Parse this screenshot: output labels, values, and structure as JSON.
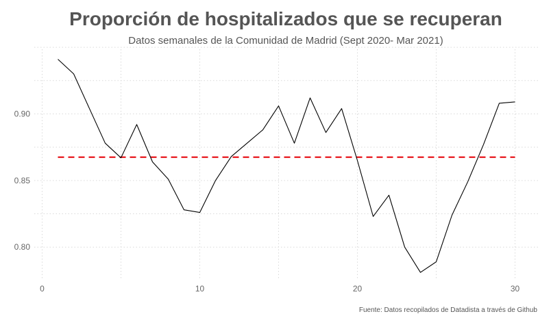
{
  "title": "Proporción de hospitalizados que se recuperan",
  "subtitle": "Datos semanales de la Comunidad de Madrid (Sept 2020- Mar 2021)",
  "caption": "Fuente: Datos recopilados de Datadista a través de Github",
  "colors": {
    "line": "#000000",
    "mean_line": "#e8151b",
    "grid": "#d9d9d9",
    "text": "#555555"
  },
  "chart_data": {
    "type": "line",
    "title": "Proporción de hospitalizados que se recuperan",
    "subtitle": "Datos semanales de la Comunidad de Madrid (Sept 2020- Mar 2021)",
    "xlabel": "",
    "ylabel": "",
    "xlim": [
      -0.5,
      31.5
    ],
    "ylim": [
      0.7765,
      0.9485
    ],
    "x_ticks": [
      0,
      10,
      20,
      30
    ],
    "y_ticks": [
      0.8,
      0.85,
      0.9
    ],
    "x_tick_labels": [
      "0",
      "10",
      "20",
      "30"
    ],
    "y_tick_labels": [
      "0.80",
      "0.85",
      "0.90"
    ],
    "grid": true,
    "grid_style": "dotted",
    "x": [
      1,
      2,
      3,
      4,
      5,
      6,
      7,
      8,
      9,
      10,
      11,
      12,
      13,
      14,
      15,
      16,
      17,
      18,
      19,
      20,
      21,
      22,
      23,
      24,
      25,
      26,
      27,
      28,
      29,
      30
    ],
    "values": [
      0.941,
      0.93,
      0.904,
      0.878,
      0.867,
      0.892,
      0.864,
      0.851,
      0.828,
      0.826,
      0.85,
      0.868,
      0.878,
      0.888,
      0.906,
      0.878,
      0.912,
      0.886,
      0.904,
      0.865,
      0.823,
      0.839,
      0.8,
      0.781,
      0.789,
      0.824,
      0.849,
      0.877,
      0.908,
      0.909
    ],
    "reference_line": {
      "y": 0.8675,
      "x_range": [
        1,
        30
      ],
      "style": "dashed"
    }
  }
}
